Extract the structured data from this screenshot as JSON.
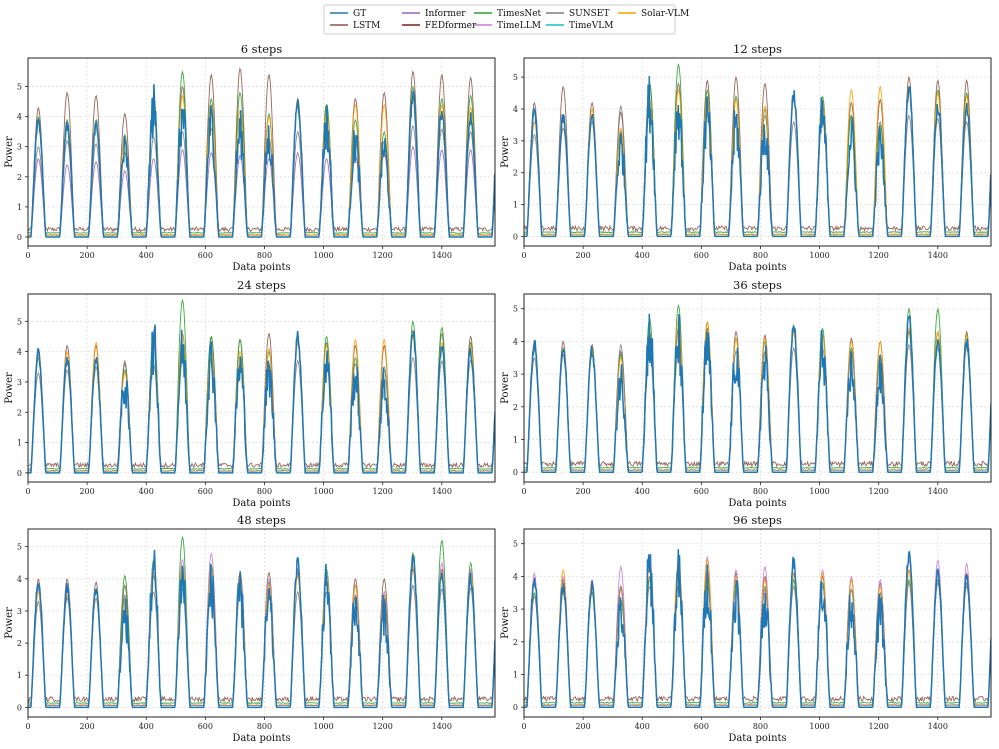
{
  "figure": {
    "legend": {
      "placement": "top-center",
      "entries": [
        {
          "label": "GT",
          "color": "#1f77b4"
        },
        {
          "label": "LSTM",
          "color": "#8c564b"
        },
        {
          "label": "Informer",
          "color": "#9467bd"
        },
        {
          "label": "FEDformer",
          "color": "#7f1d1d"
        },
        {
          "label": "TimesNet",
          "color": "#2ca02c"
        },
        {
          "label": "TimeLLM",
          "color": "#c77cd4"
        },
        {
          "label": "SUNSET",
          "color": "#7f7f7f"
        },
        {
          "label": "TimeVLM",
          "color": "#17becf"
        },
        {
          "label": "Solar-VLM",
          "color": "#ff9f00"
        }
      ]
    }
  },
  "chart_data": [
    {
      "type": "line",
      "title": "6 steps",
      "xlabel": "Data points",
      "ylabel": "Power",
      "xlim": [
        0,
        1580
      ],
      "ylim": [
        -0.3,
        5.95
      ],
      "xticks": [
        0,
        200,
        400,
        600,
        800,
        1000,
        1200,
        1400
      ],
      "yticks": [
        0,
        1,
        2,
        3,
        4,
        5
      ],
      "grid": true,
      "cycle_length": 97.5,
      "gt_day_peaks": [
        4.1,
        3.9,
        3.9,
        3.5,
        5.2,
        4.9,
        4.6,
        4.3,
        4.0,
        4.7,
        4.6,
        3.9,
        3.6,
        4.9,
        4.3,
        4.2
      ],
      "series": [
        {
          "name": "LSTM",
          "day_peaks": [
            4.3,
            4.8,
            4.7,
            4.1,
            4.2,
            5.0,
            5.4,
            5.6,
            5.4,
            4.6,
            4.4,
            4.6,
            4.8,
            5.5,
            5.4,
            5.3
          ]
        },
        {
          "name": "Informer",
          "day_peaks": [
            2.6,
            2.4,
            2.5,
            2.2,
            2.6,
            2.9,
            2.8,
            2.7,
            2.6,
            2.8,
            2.6,
            2.7,
            2.8,
            3.0,
            2.9,
            2.9
          ]
        },
        {
          "name": "TimesNet",
          "day_peaks": [
            4.0,
            3.9,
            3.9,
            3.4,
            4.7,
            5.5,
            4.6,
            4.8,
            4.1,
            4.5,
            4.4,
            3.9,
            3.5,
            5.0,
            4.6,
            4.7
          ]
        },
        {
          "name": "SUNSET",
          "day_peaks": [
            3.0,
            3.2,
            3.1,
            2.8,
            3.3,
            3.5,
            3.6,
            3.4,
            3.3,
            3.5,
            3.4,
            3.3,
            3.2,
            3.7,
            3.6,
            3.5
          ]
        },
        {
          "name": "Solar-VLM",
          "day_peaks": [
            3.8,
            3.7,
            3.8,
            3.3,
            4.5,
            4.7,
            4.4,
            4.2,
            4.0,
            4.4,
            4.2,
            4.4,
            4.4,
            4.6,
            4.4,
            4.3
          ]
        },
        {
          "name": "GT",
          "day_peaks": [
            4.1,
            3.9,
            3.9,
            3.5,
            5.2,
            4.9,
            4.6,
            4.3,
            4.0,
            4.7,
            4.6,
            3.9,
            3.6,
            4.9,
            4.3,
            4.2
          ]
        }
      ]
    },
    {
      "type": "line",
      "title": "12 steps",
      "xlabel": "Data points",
      "ylabel": "Power",
      "xlim": [
        0,
        1580
      ],
      "ylim": [
        -0.3,
        5.6
      ],
      "xticks": [
        0,
        200,
        400,
        600,
        800,
        1000,
        1200,
        1400
      ],
      "yticks": [
        0,
        1,
        2,
        3,
        4,
        5
      ],
      "grid": true,
      "cycle_length": 97.5,
      "gt_day_peaks": [
        4.1,
        3.9,
        3.9,
        3.5,
        5.2,
        4.9,
        4.6,
        4.3,
        4.0,
        4.7,
        4.6,
        3.9,
        3.6,
        4.9,
        4.3,
        4.2
      ],
      "series": [
        {
          "name": "LSTM",
          "day_peaks": [
            4.2,
            4.7,
            4.2,
            3.9,
            4.8,
            4.8,
            4.9,
            5.0,
            4.8,
            4.4,
            4.3,
            4.2,
            4.3,
            5.0,
            4.9,
            4.9
          ]
        },
        {
          "name": "SUNSET",
          "day_peaks": [
            3.2,
            3.4,
            3.6,
            4.1,
            4.0,
            3.9,
            3.8,
            3.7,
            3.8,
            3.6,
            3.7,
            3.8,
            3.6,
            3.8,
            3.7,
            3.6
          ]
        },
        {
          "name": "TimesNet",
          "day_peaks": [
            3.9,
            3.8,
            3.8,
            3.3,
            4.8,
            5.4,
            4.6,
            4.4,
            4.0,
            4.4,
            4.4,
            3.8,
            3.5,
            4.7,
            4.6,
            4.5
          ]
        },
        {
          "name": "Solar-VLM",
          "day_peaks": [
            3.6,
            3.7,
            4.0,
            3.4,
            4.3,
            4.6,
            4.4,
            4.3,
            4.1,
            4.3,
            4.3,
            4.6,
            4.7,
            4.6,
            4.5,
            4.4
          ]
        },
        {
          "name": "GT",
          "day_peaks": [
            4.1,
            3.9,
            3.9,
            3.5,
            5.2,
            4.9,
            4.6,
            4.3,
            4.0,
            4.7,
            4.6,
            3.9,
            3.6,
            4.9,
            4.3,
            4.2
          ]
        }
      ]
    },
    {
      "type": "line",
      "title": "24 steps",
      "xlabel": "Data points",
      "ylabel": "Power",
      "xlim": [
        0,
        1580
      ],
      "ylim": [
        -0.3,
        5.9
      ],
      "xticks": [
        0,
        200,
        400,
        600,
        800,
        1000,
        1200,
        1400
      ],
      "yticks": [
        0,
        1,
        2,
        3,
        4,
        5
      ],
      "grid": true,
      "cycle_length": 97.5,
      "gt_day_peaks": [
        4.1,
        3.9,
        3.9,
        3.5,
        5.2,
        4.9,
        4.6,
        4.3,
        4.0,
        4.7,
        4.6,
        3.9,
        3.6,
        4.9,
        4.3,
        4.2
      ],
      "series": [
        {
          "name": "LSTM",
          "day_peaks": [
            4.1,
            4.2,
            4.2,
            3.6,
            4.4,
            4.6,
            4.5,
            4.4,
            4.6,
            4.5,
            4.3,
            4.2,
            4.2,
            4.7,
            4.6,
            4.5
          ]
        },
        {
          "name": "TimesNet",
          "day_peaks": [
            3.8,
            3.7,
            3.7,
            3.4,
            4.6,
            5.7,
            4.5,
            4.4,
            4.0,
            4.4,
            4.5,
            3.8,
            3.4,
            5.0,
            4.8,
            4.3
          ]
        },
        {
          "name": "Solar-VLM",
          "day_peaks": [
            3.9,
            4.0,
            4.3,
            3.3,
            4.3,
            4.6,
            4.1,
            4.0,
            4.1,
            4.3,
            4.2,
            4.4,
            4.4,
            4.5,
            4.3,
            4.2
          ]
        },
        {
          "name": "SUNSET",
          "day_peaks": [
            3.3,
            3.4,
            3.5,
            3.7,
            3.6,
            3.7,
            3.8,
            3.6,
            3.6,
            3.7,
            3.6,
            3.6,
            3.5,
            3.8,
            3.7,
            3.7
          ]
        },
        {
          "name": "GT",
          "day_peaks": [
            4.1,
            3.9,
            3.9,
            3.5,
            5.2,
            4.9,
            4.6,
            4.3,
            4.0,
            4.7,
            4.6,
            3.9,
            3.6,
            4.9,
            4.3,
            4.2
          ]
        }
      ]
    },
    {
      "type": "line",
      "title": "36 steps",
      "xlabel": "Data points",
      "ylabel": "Power",
      "xlim": [
        0,
        1580
      ],
      "ylim": [
        -0.3,
        5.45
      ],
      "xticks": [
        0,
        200,
        400,
        600,
        800,
        1000,
        1200,
        1400
      ],
      "yticks": [
        0,
        1,
        2,
        3,
        4,
        5
      ],
      "grid": true,
      "cycle_length": 97.5,
      "gt_day_peaks": [
        4.1,
        3.9,
        3.9,
        3.5,
        5.2,
        4.9,
        4.6,
        4.3,
        4.0,
        4.7,
        4.6,
        3.9,
        3.6,
        4.9,
        4.3,
        4.2
      ],
      "series": [
        {
          "name": "LSTM",
          "day_peaks": [
            4.0,
            4.0,
            3.9,
            3.7,
            4.3,
            4.4,
            4.4,
            4.3,
            4.2,
            4.3,
            4.2,
            4.1,
            4.0,
            4.3,
            4.3,
            4.3
          ]
        },
        {
          "name": "TimesNet",
          "day_peaks": [
            3.9,
            3.8,
            3.8,
            3.6,
            4.7,
            5.1,
            4.6,
            4.1,
            4.0,
            4.5,
            4.4,
            3.8,
            3.5,
            5.0,
            5.0,
            4.2
          ]
        },
        {
          "name": "Solar-VLM",
          "day_peaks": [
            3.8,
            3.6,
            3.7,
            3.5,
            4.2,
            4.7,
            4.6,
            4.1,
            4.1,
            4.3,
            4.2,
            4.0,
            4.0,
            4.4,
            4.3,
            4.2
          ]
        },
        {
          "name": "SUNSET",
          "day_peaks": [
            3.5,
            3.6,
            3.6,
            3.9,
            3.7,
            3.8,
            3.9,
            3.7,
            3.7,
            3.8,
            3.8,
            3.7,
            3.6,
            3.9,
            3.8,
            3.8
          ]
        },
        {
          "name": "GT",
          "day_peaks": [
            4.1,
            3.9,
            3.9,
            3.5,
            5.2,
            4.9,
            4.6,
            4.3,
            4.0,
            4.7,
            4.6,
            3.9,
            3.6,
            4.9,
            4.3,
            4.2
          ]
        }
      ]
    },
    {
      "type": "line",
      "title": "48 steps",
      "xlabel": "Data points",
      "ylabel": "Power",
      "xlim": [
        0,
        1580
      ],
      "ylim": [
        -0.3,
        5.55
      ],
      "xticks": [
        0,
        200,
        400,
        600,
        800,
        1000,
        1200,
        1400
      ],
      "yticks": [
        0,
        1,
        2,
        3,
        4,
        5
      ],
      "grid": true,
      "cycle_length": 97.5,
      "gt_day_peaks": [
        4.1,
        3.9,
        3.9,
        3.5,
        5.2,
        4.9,
        4.6,
        4.3,
        4.0,
        4.7,
        4.6,
        3.9,
        3.6,
        4.9,
        4.3,
        4.2
      ],
      "series": [
        {
          "name": "LSTM",
          "day_peaks": [
            4.0,
            4.0,
            3.9,
            3.8,
            4.1,
            4.3,
            4.4,
            4.2,
            4.2,
            4.2,
            4.1,
            4.0,
            4.0,
            4.3,
            4.3,
            4.2
          ]
        },
        {
          "name": "TimesNet",
          "day_peaks": [
            3.8,
            3.7,
            3.7,
            4.1,
            4.6,
            5.3,
            4.4,
            4.0,
            3.9,
            4.3,
            4.3,
            3.8,
            3.5,
            4.8,
            5.2,
            4.5
          ]
        },
        {
          "name": "TimeLLM",
          "day_peaks": [
            3.7,
            3.7,
            3.6,
            3.4,
            4.4,
            4.6,
            4.8,
            4.0,
            4.0,
            4.3,
            4.1,
            3.8,
            3.6,
            4.6,
            4.5,
            4.3
          ]
        },
        {
          "name": "Solar-VLM",
          "day_peaks": [
            3.6,
            3.5,
            3.6,
            3.3,
            4.2,
            4.4,
            4.3,
            3.9,
            3.8,
            4.1,
            4.0,
            3.8,
            3.5,
            4.4,
            4.2,
            4.1
          ]
        },
        {
          "name": "SUNSET",
          "day_peaks": [
            3.3,
            3.4,
            3.4,
            3.5,
            3.6,
            3.7,
            3.7,
            3.6,
            3.5,
            3.6,
            3.6,
            3.5,
            3.4,
            3.8,
            3.7,
            3.7
          ]
        },
        {
          "name": "GT",
          "day_peaks": [
            4.1,
            3.9,
            3.9,
            3.5,
            5.2,
            4.9,
            4.6,
            4.3,
            4.0,
            4.7,
            4.6,
            3.9,
            3.6,
            4.9,
            4.3,
            4.2
          ]
        }
      ]
    },
    {
      "type": "line",
      "title": "96 steps",
      "xlabel": "Data points",
      "ylabel": "Power",
      "xlim": [
        0,
        1580
      ],
      "ylim": [
        -0.3,
        5.45
      ],
      "xticks": [
        0,
        200,
        400,
        600,
        800,
        1000,
        1200,
        1400
      ],
      "yticks": [
        0,
        1,
        2,
        3,
        4,
        5
      ],
      "grid": true,
      "cycle_length": 97.5,
      "gt_day_peaks": [
        4.1,
        3.9,
        3.9,
        3.5,
        5.2,
        4.9,
        4.6,
        4.3,
        4.0,
        4.7,
        4.6,
        3.9,
        3.6,
        4.9,
        4.3,
        4.2
      ],
      "series": [
        {
          "name": "LSTM",
          "day_peaks": [
            3.9,
            3.9,
            3.8,
            3.7,
            4.0,
            4.1,
            4.2,
            4.1,
            4.0,
            4.1,
            4.0,
            3.9,
            3.8,
            4.2,
            4.2,
            4.1
          ]
        },
        {
          "name": "TimeLLM",
          "day_peaks": [
            4.1,
            4.0,
            3.9,
            4.3,
            4.6,
            4.4,
            4.6,
            4.2,
            4.3,
            4.4,
            4.2,
            4.0,
            3.9,
            4.5,
            4.5,
            4.4
          ]
        },
        {
          "name": "TimesNet",
          "day_peaks": [
            3.5,
            3.6,
            3.5,
            3.3,
            3.9,
            4.1,
            4.0,
            3.8,
            3.7,
            3.9,
            3.8,
            3.6,
            3.5,
            3.9,
            3.9,
            3.8
          ]
        },
        {
          "name": "Solar-VLM",
          "day_peaks": [
            3.8,
            4.2,
            3.8,
            3.6,
            4.3,
            4.5,
            4.5,
            4.0,
            3.9,
            4.1,
            4.1,
            3.9,
            3.7,
            4.2,
            4.1,
            4.0
          ]
        },
        {
          "name": "SUNSET",
          "day_peaks": [
            3.4,
            3.5,
            3.5,
            3.7,
            3.7,
            3.7,
            3.8,
            3.6,
            3.6,
            3.7,
            3.7,
            3.6,
            3.5,
            3.8,
            3.8,
            3.7
          ]
        },
        {
          "name": "GT",
          "day_peaks": [
            4.1,
            3.9,
            3.9,
            3.5,
            5.2,
            4.9,
            4.6,
            4.3,
            4.0,
            4.7,
            4.6,
            3.9,
            3.6,
            4.9,
            4.3,
            4.2
          ]
        }
      ]
    }
  ]
}
